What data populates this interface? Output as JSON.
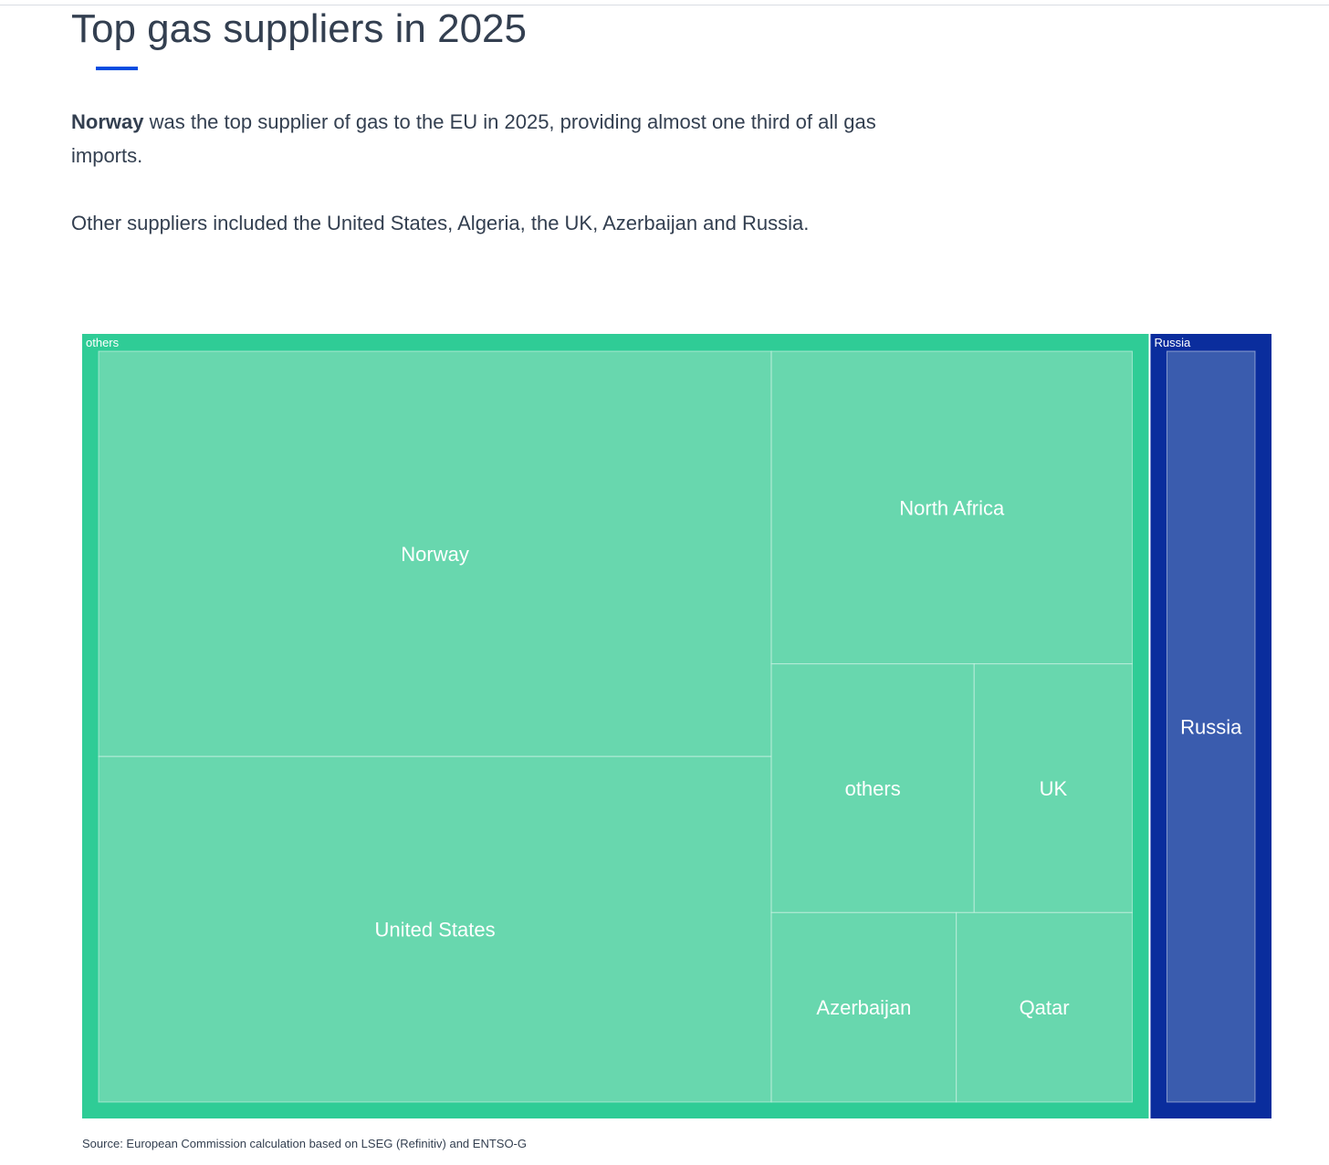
{
  "header": {
    "title": "Top gas suppliers in 2025"
  },
  "intro": {
    "bold": "Norway",
    "rest": " was the top supplier of gas to the EU in 2025, providing almost one third of all gas imports.",
    "second": "Other suppliers included the United States, Algeria, the UK, Azerbaijan and Russia."
  },
  "colors": {
    "others_group": "#2fcc96",
    "others_tile": "#68d7ae",
    "russia_group": "#0a2d9d",
    "russia_tile": "#3a5cae",
    "label_text": "#ffffff",
    "accent": "#004ce0"
  },
  "chart_data": {
    "type": "treemap",
    "groups": [
      {
        "name": "others",
        "color": "#2fcc96",
        "tile_color": "#68d7ae",
        "children": [
          {
            "name": "Norway",
            "value": 31.9
          },
          {
            "name": "United States",
            "value": 27.2
          },
          {
            "name": "North Africa",
            "value": 13.2
          },
          {
            "name": "others",
            "value": 5.9
          },
          {
            "name": "UK",
            "value": 4.6
          },
          {
            "name": "Azerbaijan",
            "value": 4.1
          },
          {
            "name": "Qatar",
            "value": 3.9
          }
        ]
      },
      {
        "name": "Russia",
        "color": "#0a2d9d",
        "tile_color": "#3a5cae",
        "children": [
          {
            "name": "Russia",
            "value": 10.3
          }
        ]
      }
    ]
  },
  "footer": {
    "source": "Source: European Commission calculation based on LSEG (Refinitiv) and ENTSO-G"
  }
}
